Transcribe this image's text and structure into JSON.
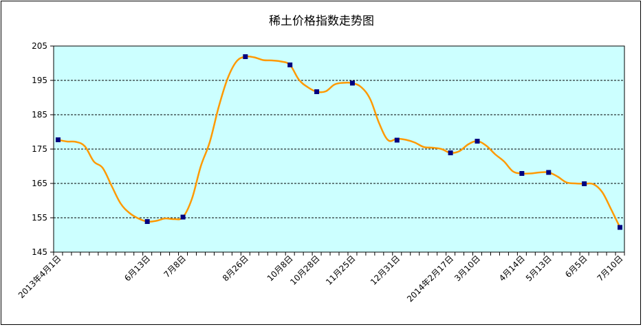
{
  "chart_data": {
    "type": "line",
    "title": "稀土价格指数走势图",
    "xlabel": "",
    "ylabel": "",
    "ylim": [
      145,
      205
    ],
    "yticks": [
      145,
      155,
      165,
      175,
      185,
      195,
      205
    ],
    "grid": "horizontal-dashed",
    "legend": "none",
    "colors": {
      "plot_bg": "#ccffff",
      "line": "#ff9900",
      "marker": "#000080",
      "grid": "#000000"
    },
    "x_labels": [
      {
        "label": "2013年4月1日",
        "index": 0
      },
      {
        "label": "6月13日",
        "index": 10
      },
      {
        "label": "7月8日",
        "index": 14
      },
      {
        "label": "8月26日",
        "index": 21
      },
      {
        "label": "10月8日",
        "index": 26
      },
      {
        "label": "10月28日",
        "index": 29
      },
      {
        "label": "11月25日",
        "index": 33
      },
      {
        "label": "12月31日",
        "index": 38
      },
      {
        "label": "2014年2月17日",
        "index": 44
      },
      {
        "label": "3月10日",
        "index": 47
      },
      {
        "label": "4月14日",
        "index": 52
      },
      {
        "label": "5月13日",
        "index": 55
      },
      {
        "label": "6月5日",
        "index": 59
      },
      {
        "label": "7月10日",
        "index": 63
      }
    ],
    "series": [
      {
        "values": [
          177.7,
          177.2,
          177.1,
          175.8,
          171.4,
          169.5,
          164.3,
          159.2,
          156.4,
          154.8,
          153.9,
          154.1,
          154.8,
          154.6,
          155.2,
          160.5,
          170.0,
          177.0,
          187.2,
          195.5,
          200.5,
          201.9,
          201.7,
          200.9,
          200.8,
          200.5,
          199.5,
          195.2,
          193.0,
          191.7,
          191.8,
          193.8,
          194.3,
          194.2,
          193.0,
          189.5,
          182.5,
          177.6,
          178.0,
          177.7,
          176.9,
          175.6,
          175.4,
          175.0,
          173.9,
          174.4,
          176.4,
          177.3,
          176.0,
          173.5,
          171.4,
          168.5,
          167.9,
          167.9,
          168.2,
          168.2,
          167.0,
          165.3,
          165.0,
          164.9,
          164.8,
          162.5,
          157.5,
          152.2
        ],
        "markers": [
          {
            "index": 0,
            "value": 177.7
          },
          {
            "index": 10,
            "value": 153.9
          },
          {
            "index": 14,
            "value": 155.2
          },
          {
            "index": 21,
            "value": 201.9
          },
          {
            "index": 26,
            "value": 199.5
          },
          {
            "index": 29,
            "value": 191.7
          },
          {
            "index": 33,
            "value": 194.2
          },
          {
            "index": 38,
            "value": 177.6
          },
          {
            "index": 44,
            "value": 173.9
          },
          {
            "index": 47,
            "value": 177.3
          },
          {
            "index": 52,
            "value": 167.9
          },
          {
            "index": 55,
            "value": 168.2
          },
          {
            "index": 59,
            "value": 164.9
          },
          {
            "index": 63,
            "value": 152.2
          }
        ]
      }
    ]
  }
}
